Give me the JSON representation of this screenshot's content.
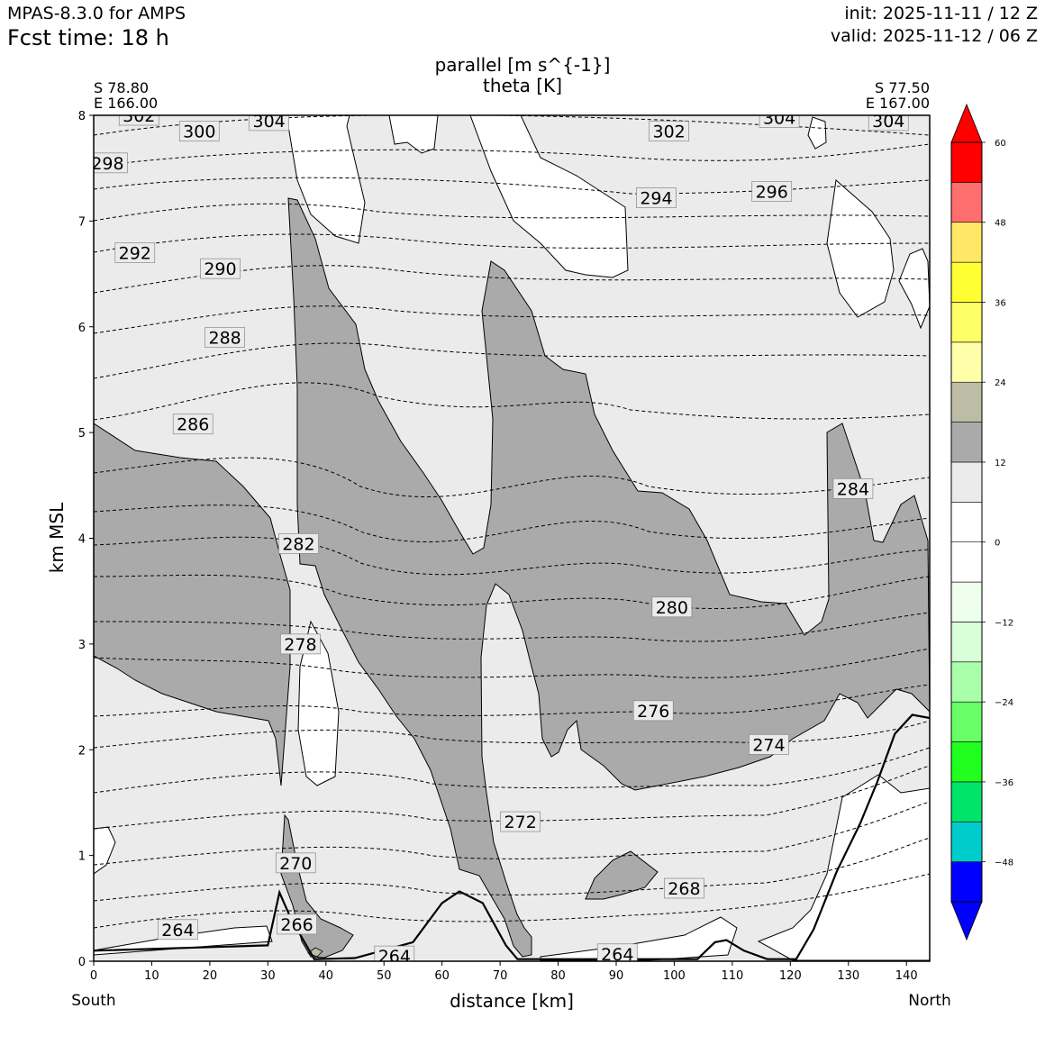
{
  "header": {
    "model": "MPAS-8.3.0 for AMPS",
    "fcst_time": "Fcst time:   18 h",
    "init": "init: 2025-11-11 / 12 Z",
    "valid": "valid: 2025-11-12 / 06 Z"
  },
  "cross_section": {
    "left_lat": "S 78.80",
    "left_lon": "E 166.00",
    "right_lat": "S 77.50",
    "right_lon": "E 167.00",
    "left_dir": "South",
    "right_dir": "North"
  },
  "chart_data": {
    "type": "contour",
    "title_fill": "parallel [m s^{-1}]",
    "title_contour": "theta [K]",
    "xlabel": "distance [km]",
    "ylabel": "km MSL",
    "xlim": [
      0,
      144
    ],
    "ylim": [
      0,
      8
    ],
    "x_ticks": [
      0,
      10,
      20,
      30,
      40,
      50,
      60,
      70,
      80,
      90,
      100,
      110,
      120,
      130,
      140
    ],
    "y_ticks": [
      0,
      1,
      2,
      3,
      4,
      5,
      6,
      7,
      8
    ],
    "colorbar": {
      "levels": [
        -54,
        -48,
        -42,
        -36,
        -30,
        -24,
        -18,
        -12,
        -6,
        0,
        6,
        12,
        18,
        24,
        30,
        36,
        42,
        48,
        54,
        60
      ],
      "tick_labels": [
        "60",
        "48",
        "36",
        "24",
        "12",
        "0",
        "−12",
        "−24",
        "−36",
        "−48"
      ],
      "tick_values": [
        60,
        48,
        36,
        24,
        12,
        0,
        -12,
        -24,
        -36,
        -48
      ],
      "colors": [
        "#0000ff",
        "#00cccc",
        "#00e46c",
        "#20ff20",
        "#66ff66",
        "#aaffaa",
        "#d8ffd8",
        "#eeffee",
        "#ffffff",
        "#ffffff",
        "#ebebeb",
        "#aaaaaa",
        "#bdbda6",
        "#ffffaa",
        "#ffff66",
        "#ffff33",
        "#ffe866",
        "#ff6e6e",
        "#ff0000"
      ],
      "extend": "both"
    },
    "theta_labels": [
      {
        "text": "302",
        "x": 7.8,
        "y": 8.0
      },
      {
        "text": "304",
        "x": 30.2,
        "y": 7.95
      },
      {
        "text": "300",
        "x": 18.2,
        "y": 7.85
      },
      {
        "text": "298",
        "x": 2.4,
        "y": 7.55
      },
      {
        "text": "292",
        "x": 7.1,
        "y": 6.7
      },
      {
        "text": "290",
        "x": 21.8,
        "y": 6.55
      },
      {
        "text": "288",
        "x": 22.6,
        "y": 5.9
      },
      {
        "text": "286",
        "x": 17.1,
        "y": 5.08
      },
      {
        "text": "282",
        "x": 35.3,
        "y": 3.95
      },
      {
        "text": "278",
        "x": 35.6,
        "y": 3.0
      },
      {
        "text": "270",
        "x": 34.8,
        "y": 0.93
      },
      {
        "text": "266",
        "x": 35.0,
        "y": 0.35
      },
      {
        "text": "264",
        "x": 14.5,
        "y": 0.3
      },
      {
        "text": "264",
        "x": 51.8,
        "y": 0.05
      },
      {
        "text": "302",
        "x": 99.1,
        "y": 7.85
      },
      {
        "text": "304",
        "x": 118.1,
        "y": 7.98
      },
      {
        "text": "304",
        "x": 136.9,
        "y": 7.95
      },
      {
        "text": "294",
        "x": 96.9,
        "y": 7.22
      },
      {
        "text": "296",
        "x": 116.8,
        "y": 7.28
      },
      {
        "text": "284",
        "x": 130.8,
        "y": 4.47
      },
      {
        "text": "280",
        "x": 99.6,
        "y": 3.35
      },
      {
        "text": "276",
        "x": 96.4,
        "y": 2.37
      },
      {
        "text": "274",
        "x": 116.3,
        "y": 2.05
      },
      {
        "text": "272",
        "x": 73.5,
        "y": 1.32
      },
      {
        "text": "268",
        "x": 101.7,
        "y": 0.69
      },
      {
        "text": "264",
        "x": 90.2,
        "y": 0.07
      }
    ],
    "terrain_km": [
      [
        0,
        0.1
      ],
      [
        30,
        0.15
      ],
      [
        32,
        0.65
      ],
      [
        34,
        0.4
      ],
      [
        38,
        0.02
      ],
      [
        45,
        0.03
      ],
      [
        55,
        0.18
      ],
      [
        60,
        0.55
      ],
      [
        63,
        0.66
      ],
      [
        67,
        0.55
      ],
      [
        71,
        0.15
      ],
      [
        73,
        0.02
      ],
      [
        80,
        0.02
      ],
      [
        90,
        0.02
      ],
      [
        104,
        0.02
      ],
      [
        107,
        0.18
      ],
      [
        109,
        0.2
      ],
      [
        112,
        0.1
      ],
      [
        116,
        0.02
      ],
      [
        121,
        0.02
      ],
      [
        124,
        0.3
      ],
      [
        128,
        0.85
      ],
      [
        132,
        1.3
      ],
      [
        135,
        1.7
      ],
      [
        138,
        2.15
      ],
      [
        141,
        2.33
      ],
      [
        144,
        2.3
      ]
    ]
  }
}
